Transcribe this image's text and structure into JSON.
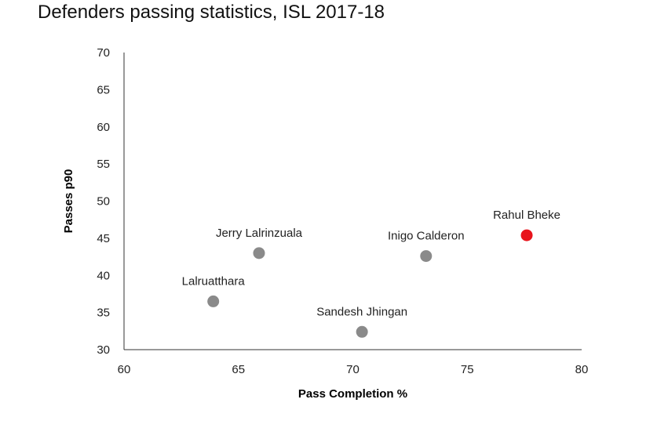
{
  "chart_data": {
    "type": "scatter",
    "title": "Defenders passing statistics, ISL 2017-18",
    "xlabel": "Pass Completion %",
    "ylabel": "Passes p90",
    "xlim": [
      60,
      80
    ],
    "ylim": [
      30,
      70
    ],
    "xticks": [
      60,
      65,
      70,
      75,
      80
    ],
    "yticks": [
      30,
      35,
      40,
      45,
      50,
      55,
      60,
      65,
      70
    ],
    "grid": false,
    "points": [
      {
        "label": "Lalruatthara",
        "x": 63.9,
        "y": 36.5,
        "color": "#8a8a8a"
      },
      {
        "label": "Jerry Lalrinzuala",
        "x": 65.9,
        "y": 43.0,
        "color": "#8a8a8a"
      },
      {
        "label": "Sandesh Jhingan",
        "x": 70.4,
        "y": 32.4,
        "color": "#8a8a8a"
      },
      {
        "label": "Inigo Calderon",
        "x": 73.2,
        "y": 42.6,
        "color": "#8a8a8a"
      },
      {
        "label": "Rahul Bheke",
        "x": 77.6,
        "y": 45.4,
        "color": "#e8141c"
      }
    ]
  }
}
